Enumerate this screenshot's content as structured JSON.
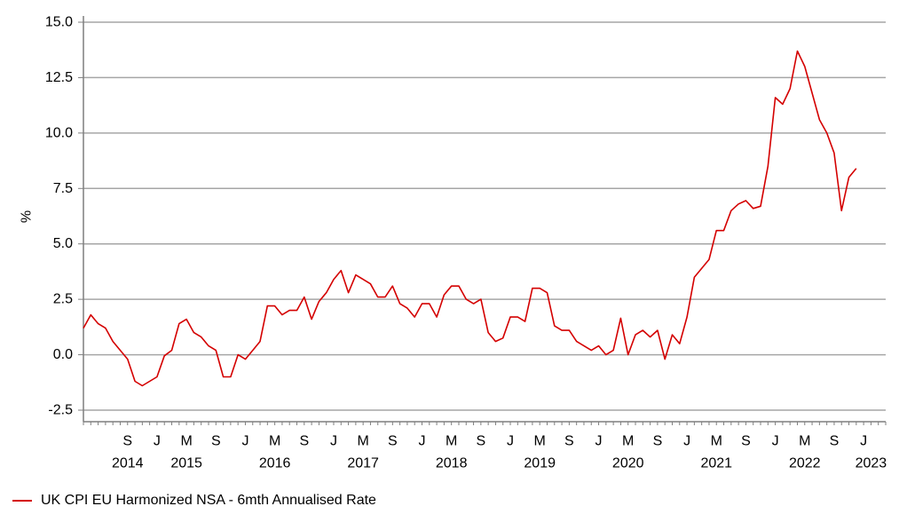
{
  "chart_data": {
    "type": "line",
    "title": "",
    "xlabel": "",
    "ylabel": "%",
    "ylim": [
      -2.5,
      15.0
    ],
    "y_ticks": [
      "-2.5",
      "0.0",
      "2.5",
      "5.0",
      "7.5",
      "10.0",
      "12.5",
      "15.0"
    ],
    "x_range": [
      "2014-03",
      "2023-04"
    ],
    "x_month_ticks": [
      {
        "label": "S",
        "date": "2014-09"
      },
      {
        "label": "J",
        "date": "2015-01"
      },
      {
        "label": "M",
        "date": "2015-05"
      },
      {
        "label": "S",
        "date": "2015-09"
      },
      {
        "label": "J",
        "date": "2016-01"
      },
      {
        "label": "M",
        "date": "2016-05"
      },
      {
        "label": "S",
        "date": "2016-09"
      },
      {
        "label": "J",
        "date": "2017-01"
      },
      {
        "label": "M",
        "date": "2017-05"
      },
      {
        "label": "S",
        "date": "2017-09"
      },
      {
        "label": "J",
        "date": "2018-01"
      },
      {
        "label": "M",
        "date": "2018-05"
      },
      {
        "label": "S",
        "date": "2018-09"
      },
      {
        "label": "J",
        "date": "2019-01"
      },
      {
        "label": "M",
        "date": "2019-05"
      },
      {
        "label": "S",
        "date": "2019-09"
      },
      {
        "label": "J",
        "date": "2020-01"
      },
      {
        "label": "M",
        "date": "2020-05"
      },
      {
        "label": "S",
        "date": "2020-09"
      },
      {
        "label": "J",
        "date": "2021-01"
      },
      {
        "label": "M",
        "date": "2021-05"
      },
      {
        "label": "S",
        "date": "2021-09"
      },
      {
        "label": "J",
        "date": "2022-01"
      },
      {
        "label": "M",
        "date": "2022-05"
      },
      {
        "label": "S",
        "date": "2022-09"
      },
      {
        "label": "J",
        "date": "2023-01"
      }
    ],
    "x_year_labels": [
      {
        "label": "2014",
        "date": "2014-09"
      },
      {
        "label": "2015",
        "date": "2015-05"
      },
      {
        "label": "2016",
        "date": "2016-05"
      },
      {
        "label": "2017",
        "date": "2017-05"
      },
      {
        "label": "2018",
        "date": "2018-05"
      },
      {
        "label": "2019",
        "date": "2019-05"
      },
      {
        "label": "2020",
        "date": "2020-05"
      },
      {
        "label": "2021",
        "date": "2021-05"
      },
      {
        "label": "2022",
        "date": "2022-05"
      },
      {
        "label": "2023",
        "date": "2023-02"
      }
    ],
    "grid": "horizontal",
    "legend_position": "bottom-left",
    "series": [
      {
        "name": "UK CPI EU Harmonized NSA - 6mth Annualised Rate",
        "color": "#d40000",
        "start": "2014-03",
        "frequency": "monthly",
        "values": [
          1.2,
          1.8,
          1.4,
          1.2,
          0.6,
          0.2,
          -0.2,
          -1.2,
          -1.4,
          -1.2,
          -1.0,
          -0.05,
          0.2,
          1.4,
          1.6,
          1.0,
          0.8,
          0.4,
          0.2,
          -1.0,
          -1.0,
          0.0,
          -0.2,
          0.2,
          0.6,
          2.2,
          2.2,
          1.8,
          2.0,
          2.0,
          2.6,
          1.6,
          2.4,
          2.8,
          3.4,
          3.8,
          2.8,
          3.6,
          3.4,
          3.2,
          2.6,
          2.6,
          3.1,
          2.3,
          2.1,
          1.7,
          2.3,
          2.3,
          1.7,
          2.7,
          3.1,
          3.1,
          2.5,
          2.3,
          2.5,
          1.0,
          0.6,
          0.75,
          1.7,
          1.7,
          1.5,
          3.0,
          3.0,
          2.8,
          1.3,
          1.1,
          1.1,
          0.6,
          0.4,
          0.2,
          0.4,
          0.0,
          0.2,
          1.65,
          0.0,
          0.9,
          1.1,
          0.8,
          1.1,
          -0.2,
          0.9,
          0.5,
          1.7,
          3.5,
          3.9,
          4.3,
          5.6,
          5.6,
          6.5,
          6.8,
          6.95,
          6.6,
          6.7,
          8.5,
          11.6,
          11.3,
          12.0,
          13.7,
          13.0,
          11.8,
          10.6,
          10.0,
          9.1,
          6.5,
          8.0,
          8.4
        ]
      }
    ]
  }
}
